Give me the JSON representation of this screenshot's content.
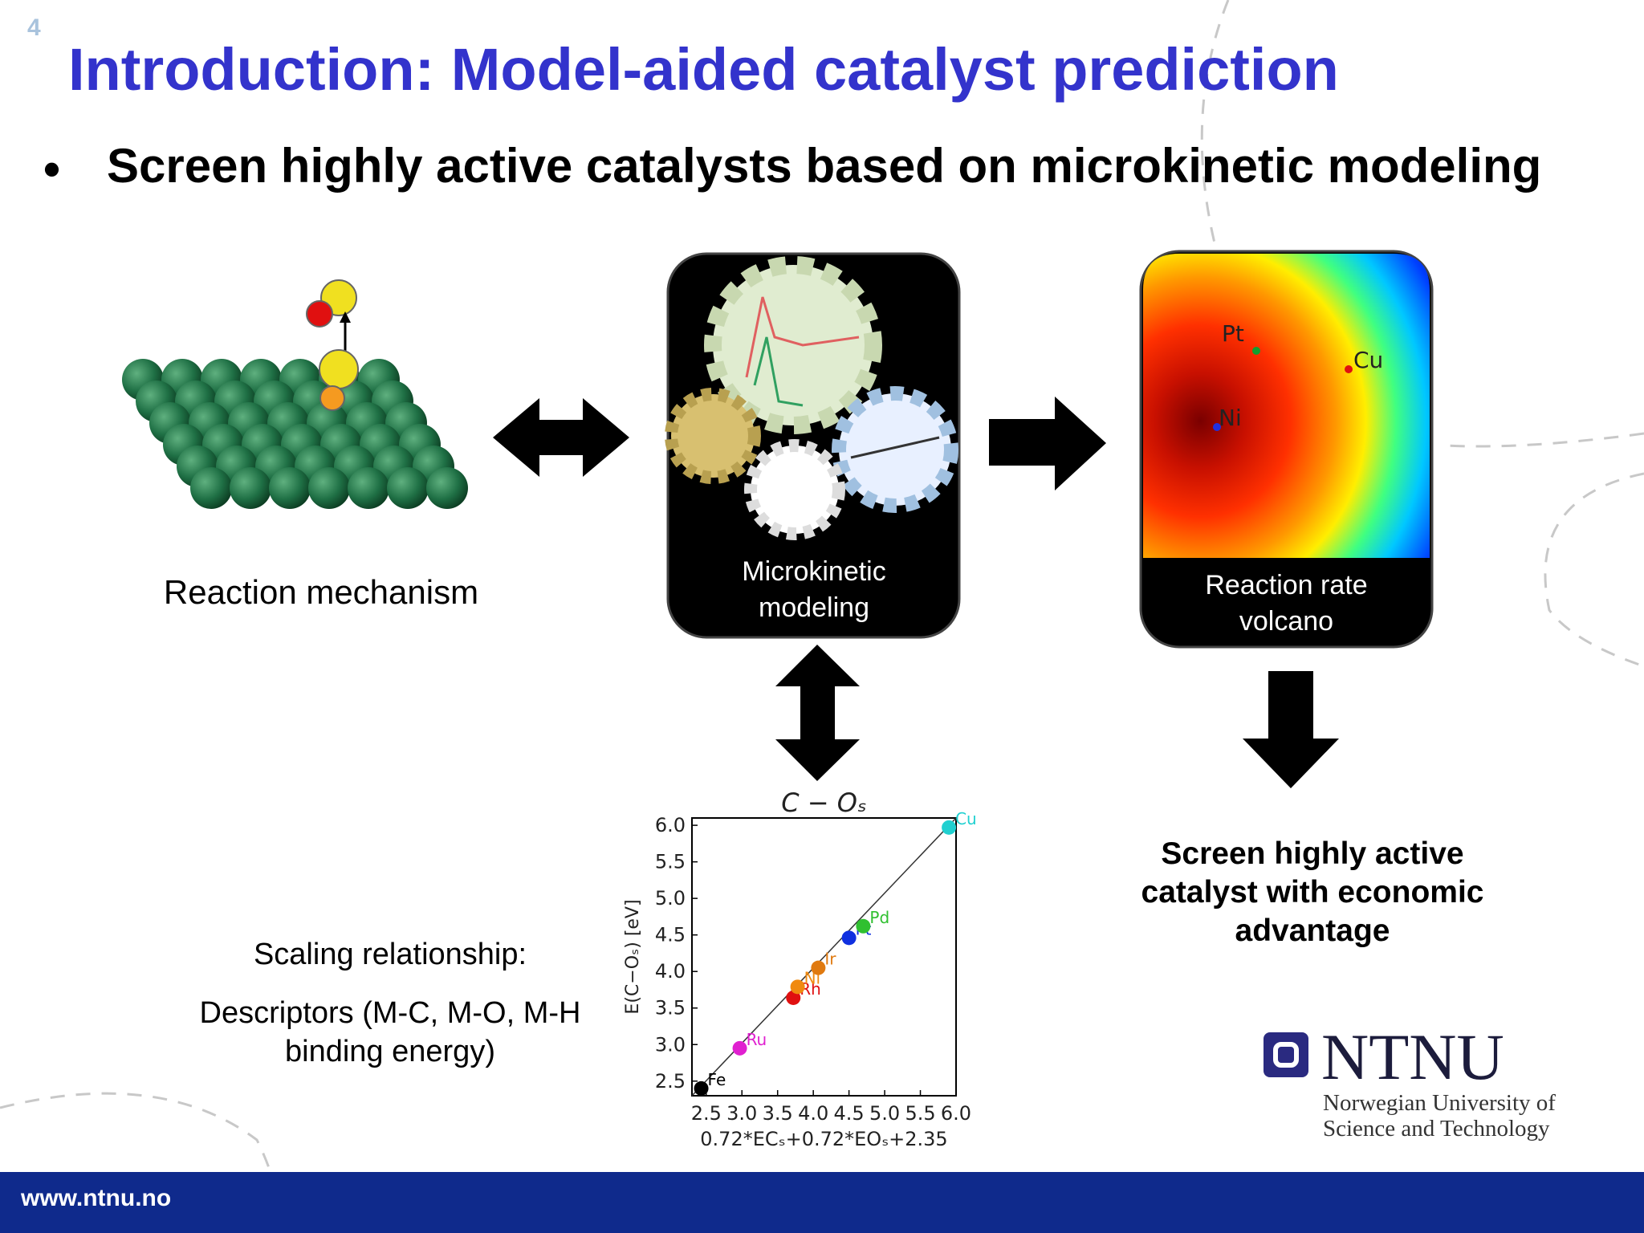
{
  "slide_number": "4",
  "title": "Introduction: Model-aided catalyst prediction",
  "bullet": "Screen highly active catalysts based on microkinetic modeling",
  "panels": {
    "mechanism": "Reaction mechanism",
    "microkinetic": "Microkinetic modeling",
    "volcano": "Reaction rate volcano",
    "volcano_points": [
      "Pt",
      "Cu",
      "Ni"
    ]
  },
  "scaling": {
    "heading": "Scaling relationship:",
    "descriptors": "Descriptors (M-C, M-O, M-H binding energy)"
  },
  "screen_text": "Screen highly active catalyst with economic advantage",
  "chart_data": {
    "type": "scatter",
    "title": "C − Oₛ",
    "x_label": "0.72*ECₛ+0.72*EOₛ+2.35",
    "y_label": "E(C−Oₛ) [eV]",
    "x": [
      2.43,
      2.97,
      3.72,
      3.78,
      4.07,
      4.5,
      4.7,
      5.9
    ],
    "values": [
      2.4,
      2.95,
      3.64,
      3.79,
      4.05,
      4.46,
      4.62,
      5.97
    ],
    "point_labels": [
      "Fe",
      "Ru",
      "Rh",
      "Ni",
      "Ir",
      "Pt",
      "Pd",
      "Cu"
    ],
    "colors": [
      "#000000",
      "#e020d0",
      "#e01010",
      "#f08a10",
      "#e07a10",
      "#1030e0",
      "#30c030",
      "#20d0d0"
    ],
    "xlim": [
      2.3,
      6.0
    ],
    "ylim": [
      2.3,
      6.1
    ],
    "xticks": [
      2.5,
      {
        "value": 3,
        "label": "3.0"
      },
      3.5,
      {
        "value": 4,
        "label": "4.0"
      },
      4.5,
      {
        "value": 5,
        "label": "5.0"
      },
      5.5,
      {
        "value": 6,
        "label": "6.0"
      }
    ],
    "yticks": [
      2.5,
      {
        "value": 3,
        "label": "3.0"
      },
      3.5,
      {
        "value": 4,
        "label": "4.0"
      },
      4.5,
      {
        "value": 5,
        "label": "5.0"
      },
      5.5,
      {
        "value": 6,
        "label": "6.0"
      }
    ]
  },
  "logo": {
    "name": "NTNU",
    "subtitle": "Norwegian University of Science and Technology"
  },
  "footer": "www.ntnu.no"
}
